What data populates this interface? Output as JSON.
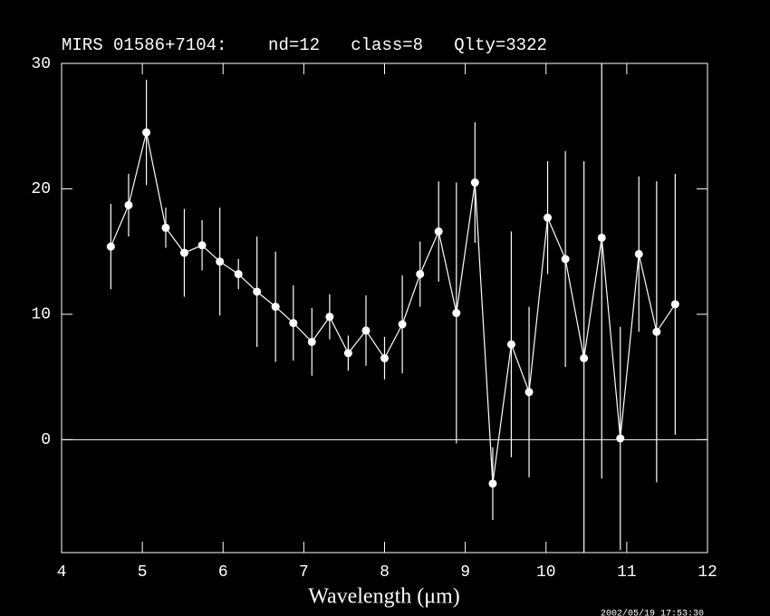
{
  "chart_data": {
    "type": "errorbar",
    "title": "MIRS 01586+7104:    nd=12   class=8   Qlty=3322",
    "x_label": "Wavelength (μm)",
    "timestamp": "2002/05/19 17:53:30",
    "x": [
      4.61,
      4.83,
      5.05,
      5.29,
      5.52,
      5.74,
      5.96,
      6.19,
      6.42,
      6.65,
      6.87,
      7.1,
      7.32,
      7.55,
      7.77,
      8.0,
      8.22,
      8.44,
      8.67,
      8.89,
      9.12,
      9.34,
      9.57,
      9.79,
      10.02,
      10.24,
      10.47,
      10.69,
      10.92,
      11.15,
      11.37,
      11.6
    ],
    "series": [
      {
        "color": "#ffffff",
        "values": [
          15.4,
          18.7,
          24.5,
          16.9,
          14.9,
          15.5,
          14.2,
          13.2,
          11.8,
          10.6,
          9.3,
          7.8,
          9.8,
          6.9,
          8.7,
          6.5,
          9.2,
          13.2,
          16.6,
          10.1,
          20.5,
          -3.5,
          7.6,
          3.8,
          17.7,
          14.4,
          6.5,
          16.1,
          0.1,
          14.8,
          8.6,
          10.8
        ],
        "errors": [
          3.4,
          2.5,
          4.2,
          1.6,
          3.5,
          2.0,
          4.3,
          1.2,
          4.4,
          4.4,
          3.0,
          2.7,
          1.8,
          1.4,
          2.8,
          1.7,
          3.9,
          2.6,
          4.0,
          10.4,
          4.8,
          2.9,
          9.0,
          6.8,
          4.5,
          8.6,
          15.7,
          19.2,
          8.9,
          6.2,
          12.0,
          10.4
        ]
      }
    ],
    "zero_line": 0,
    "xlim": [
      4,
      12
    ],
    "xticks": [
      4,
      5,
      6,
      7,
      8,
      9,
      10,
      11,
      12
    ],
    "ylim": [
      -9,
      30
    ],
    "yticks": [
      0,
      10,
      20,
      30
    ]
  }
}
